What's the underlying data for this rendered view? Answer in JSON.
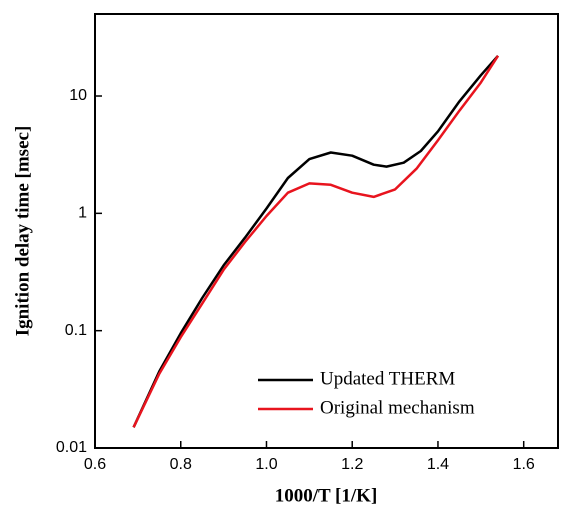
{
  "chart_data": {
    "type": "line",
    "x_label": "1000/T [1/K]",
    "y_label": "Ignition delay time [msec]",
    "xlim": [
      0.6,
      1.68
    ],
    "xticks": [
      0.6,
      0.8,
      {
        "value": 1,
        "label": "1.0"
      },
      1.2,
      1.4,
      1.6
    ],
    "ylim": [
      0.01,
      50
    ],
    "yticks": [
      0.01,
      0.1,
      1,
      10
    ],
    "log_y": true,
    "legend": "lower right",
    "series": [
      {
        "name": "Updated THERM",
        "color": "#000000",
        "x": [
          0.69,
          0.75,
          0.8,
          0.85,
          0.9,
          0.95,
          1.0,
          1.05,
          1.1,
          1.15,
          1.2,
          1.25,
          1.28,
          1.32,
          1.36,
          1.4,
          1.45,
          1.5,
          1.54
        ],
        "values": [
          0.015,
          0.045,
          0.095,
          0.19,
          0.36,
          0.62,
          1.1,
          2.0,
          2.9,
          3.3,
          3.1,
          2.6,
          2.5,
          2.7,
          3.4,
          5.0,
          9.0,
          15,
          22
        ]
      },
      {
        "name": "Original mechanism",
        "color": "#e8141e",
        "x": [
          0.69,
          0.75,
          0.8,
          0.85,
          0.9,
          0.95,
          1.0,
          1.05,
          1.1,
          1.15,
          1.2,
          1.25,
          1.3,
          1.35,
          1.4,
          1.45,
          1.5,
          1.54
        ],
        "values": [
          0.015,
          0.043,
          0.088,
          0.17,
          0.33,
          0.57,
          0.95,
          1.5,
          1.8,
          1.75,
          1.5,
          1.38,
          1.6,
          2.4,
          4.2,
          7.5,
          13,
          22
        ]
      }
    ]
  }
}
